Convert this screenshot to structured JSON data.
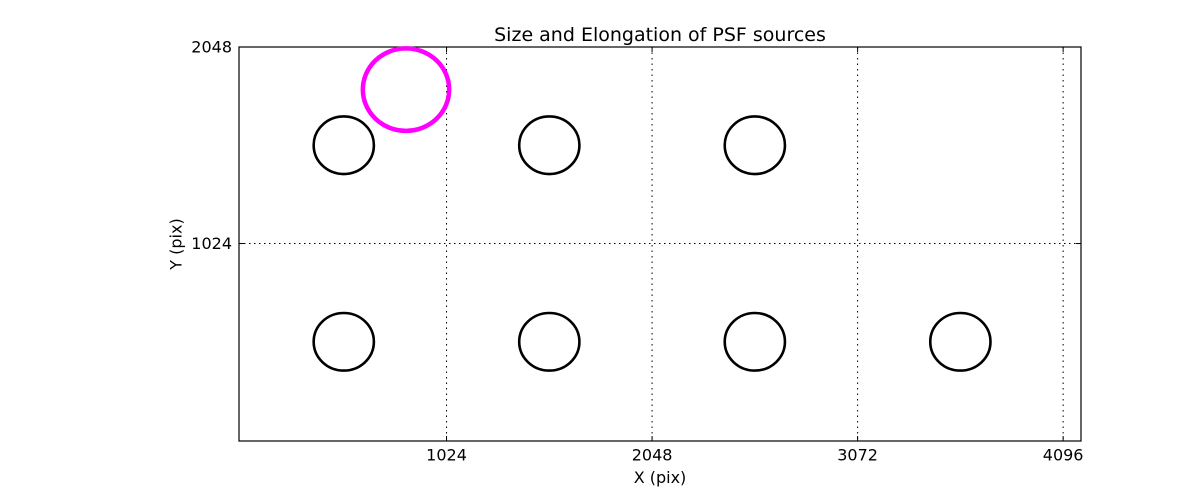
{
  "figure": {
    "background_color": "#ffffff",
    "frame_color": "#000000"
  },
  "chart_data": {
    "type": "scatter",
    "title": "Size and Elongation of PSF sources",
    "xlabel": "X (pix)",
    "ylabel": "Y (pix)",
    "xlim": [
      -10,
      4185
    ],
    "ylim": [
      -5,
      2048
    ],
    "xticks": [
      1024,
      2048,
      3072,
      4096
    ],
    "yticks": [
      1024,
      2048
    ],
    "grid": {
      "style": "dotted",
      "color": "#000000",
      "x_positions": [
        1024,
        2048,
        3072,
        4096
      ],
      "y_positions": [
        1024
      ]
    },
    "legend": "none",
    "circles": [
      {
        "x": 512,
        "y": 1536,
        "radius": 150,
        "color": "#000000",
        "linewidth": 2.6
      },
      {
        "x": 1536,
        "y": 1536,
        "radius": 150,
        "color": "#000000",
        "linewidth": 2.6
      },
      {
        "x": 2560,
        "y": 1536,
        "radius": 150,
        "color": "#000000",
        "linewidth": 2.6
      },
      {
        "x": 512,
        "y": 512,
        "radius": 150,
        "color": "#000000",
        "linewidth": 2.6
      },
      {
        "x": 1536,
        "y": 512,
        "radius": 150,
        "color": "#000000",
        "linewidth": 2.6
      },
      {
        "x": 2560,
        "y": 512,
        "radius": 150,
        "color": "#000000",
        "linewidth": 2.6
      },
      {
        "x": 3584,
        "y": 512,
        "radius": 150,
        "color": "#000000",
        "linewidth": 2.6
      },
      {
        "x": 822,
        "y": 1826,
        "radius": 215,
        "color": "#ff00ff",
        "linewidth": 4.5
      }
    ]
  }
}
